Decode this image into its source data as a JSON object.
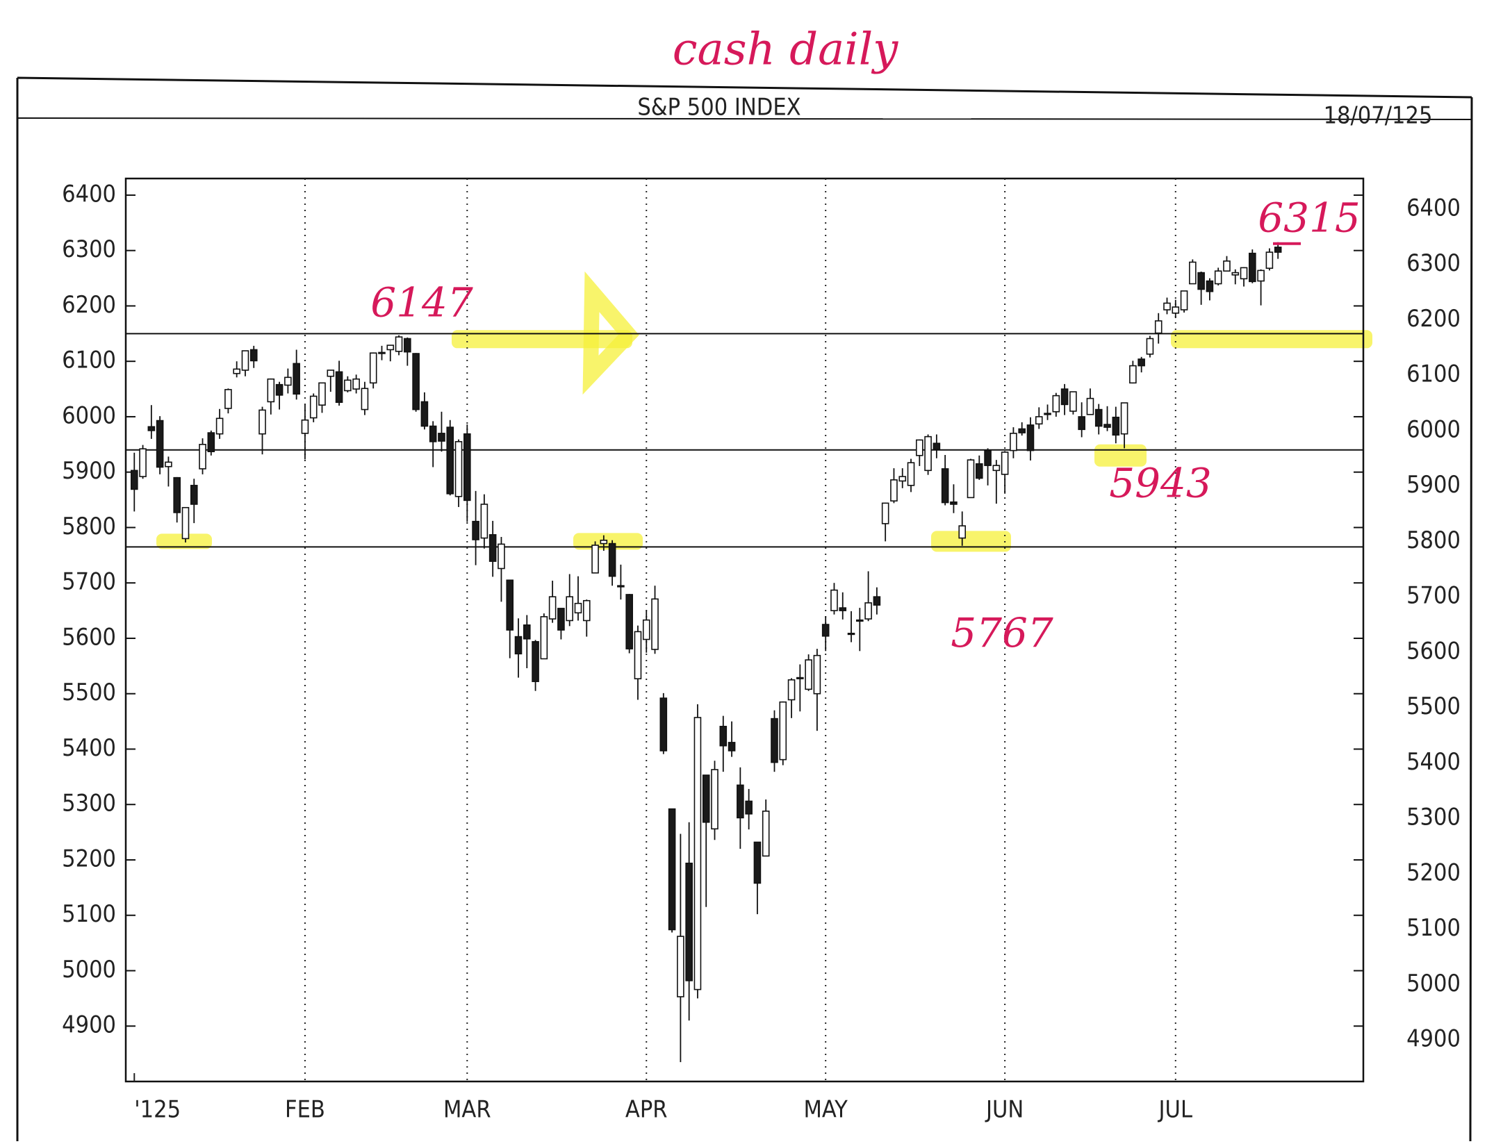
{
  "chart_data": {
    "type": "candlestick",
    "title": "S&P 500 INDEX",
    "date": "18/07/125",
    "handwritten_title": "cash daily",
    "annotations": [
      {
        "text": "6147",
        "value": 6147
      },
      {
        "text": "5767",
        "value": 5767
      },
      {
        "text": "5943",
        "value": 5943
      },
      {
        "text": "6315",
        "value": 6315
      }
    ],
    "levels": [
      6150,
      5940,
      5765
    ],
    "xlim": [
      -1,
      144
    ],
    "xticks": [
      {
        "value": 0,
        "label": "'125"
      },
      {
        "value": 20,
        "label": "FEB"
      },
      {
        "value": 39,
        "label": "MAR"
      },
      {
        "value": 60,
        "label": "APR"
      },
      {
        "value": 81,
        "label": "MAY"
      },
      {
        "value": 102,
        "label": "JUN"
      },
      {
        "value": 122,
        "label": "JUL"
      }
    ],
    "ylim": [
      4800,
      6430
    ],
    "yticks": [
      4900,
      5000,
      5100,
      5200,
      5300,
      5400,
      5500,
      5600,
      5700,
      5800,
      5900,
      6000,
      6100,
      6200,
      6300,
      6400
    ],
    "y2lim": [
      4800,
      6430
    ],
    "y2ticks": [
      4900,
      5000,
      5100,
      5200,
      5300,
      5400,
      5500,
      5600,
      5700,
      5800,
      5900,
      6000,
      6100,
      6200,
      6300,
      6400
    ],
    "up_color": "#ffffff",
    "down_color": "#1a1a1a",
    "x": [
      0,
      1,
      2,
      3,
      4,
      5,
      6,
      7,
      8,
      9,
      10,
      11,
      12,
      13,
      14,
      15,
      16,
      17,
      18,
      19,
      20,
      21,
      22,
      23,
      24,
      25,
      26,
      27,
      28,
      29,
      30,
      31,
      32,
      33,
      34,
      35,
      36,
      37,
      38,
      39,
      40,
      41,
      42,
      43,
      44,
      45,
      46,
      47,
      48,
      49,
      50,
      51,
      52,
      53,
      54,
      55,
      56,
      57,
      58,
      59,
      60,
      61,
      62,
      63,
      64,
      65,
      66,
      67,
      68,
      69,
      70,
      71,
      72,
      73,
      74,
      75,
      76,
      77,
      78,
      79,
      80,
      81,
      82,
      83,
      84,
      85,
      86,
      87,
      88,
      89,
      90,
      91,
      92,
      93,
      94,
      95,
      96,
      97,
      98,
      99,
      100,
      101,
      102,
      103,
      104,
      105,
      106,
      107,
      108,
      109,
      110,
      111,
      112,
      113,
      114,
      115,
      116,
      117,
      118,
      119,
      120,
      121,
      122,
      123,
      124,
      125,
      126,
      127,
      128,
      129,
      130,
      131,
      132,
      133,
      134
    ],
    "open": [
      5903,
      5892,
      5982,
      5993,
      5910,
      5890,
      5780,
      5876,
      5906,
      5971,
      5969,
      6015,
      6078,
      6084,
      6121,
      5969,
      6027,
      6058,
      6057,
      6096,
      5970,
      5998,
      6021,
      6073,
      6081,
      6047,
      6050,
      6013,
      6061,
      6116,
      6121,
      6118,
      6141,
      6114,
      6027,
      5983,
      5970,
      5981,
      5856,
      5969,
      5811,
      5781,
      5787,
      5726,
      5705,
      5603,
      5624,
      5594,
      5563,
      5635,
      5654,
      5632,
      5646,
      5632,
      5718,
      5771,
      5771,
      5695,
      5679,
      5527,
      5598,
      5580,
      5492,
      5292,
      4953,
      5194,
      4966,
      5353,
      5256,
      5441,
      5412,
      5335,
      5306,
      5232,
      5207,
      5455,
      5381,
      5489,
      5529,
      5508,
      5500,
      5625,
      5650,
      5655,
      5609,
      5633,
      5635,
      5675,
      5807,
      5848,
      5884,
      5876,
      5930,
      5903,
      5952,
      5906,
      5846,
      5781,
      5854,
      5915,
      5939,
      5903,
      5896,
      5939,
      5978,
      5985,
      5987,
      6004,
      6009,
      6050,
      6010,
      6000,
      6004,
      6013,
      5986,
      5999,
      5969,
      6061,
      6104,
      6113,
      6151,
      6193,
      6187,
      6193,
      6240,
      6260,
      6245,
      6240,
      6263,
      6256,
      6249,
      6295,
      6245,
      6268,
      6306
    ],
    "high": [
      5935,
      5949,
      6021,
      6001,
      5928,
      5891,
      5836,
      5888,
      5961,
      5975,
      6014,
      6051,
      6100,
      6119,
      6128,
      6018,
      6069,
      6063,
      6087,
      6121,
      6022,
      6042,
      6062,
      6084,
      6101,
      6073,
      6076,
      6063,
      6116,
      6128,
      6129,
      6147,
      6143,
      6115,
      6044,
      5992,
      6009,
      5994,
      5959,
      5986,
      5866,
      5860,
      5812,
      5783,
      5705,
      5636,
      5642,
      5597,
      5645,
      5704,
      5654,
      5716,
      5712,
      5670,
      5775,
      5786,
      5777,
      5733,
      5680,
      5623,
      5650,
      5695,
      5501,
      5292,
      5247,
      5268,
      5481,
      5353,
      5379,
      5460,
      5450,
      5367,
      5328,
      5232,
      5309,
      5470,
      5486,
      5528,
      5553,
      5571,
      5581,
      5640,
      5700,
      5683,
      5649,
      5655,
      5721,
      5692,
      5845,
      5907,
      5907,
      5924,
      5959,
      5968,
      5968,
      5931,
      5878,
      5829,
      5924,
      5930,
      5943,
      5922,
      5938,
      5981,
      5990,
      5999,
      6017,
      6022,
      6043,
      6059,
      6045,
      6026,
      6051,
      6023,
      6019,
      6018,
      6025,
      6101,
      6108,
      6146,
      6187,
      6215,
      6211,
      6227,
      6284,
      6262,
      6250,
      6269,
      6290,
      6266,
      6270,
      6302,
      6266,
      6304,
      6315
    ],
    "low": [
      5829,
      5888,
      5960,
      5896,
      5874,
      5809,
      5773,
      5808,
      5896,
      5930,
      5960,
      6006,
      6071,
      6073,
      6088,
      5932,
      6004,
      6013,
      6042,
      6031,
      5923,
      5990,
      6007,
      6045,
      6020,
      6044,
      6042,
      6003,
      6051,
      6102,
      6100,
      6111,
      6092,
      6009,
      5977,
      5909,
      5937,
      5858,
      5837,
      5810,
      5732,
      5762,
      5711,
      5666,
      5564,
      5529,
      5546,
      5505,
      5563,
      5628,
      5598,
      5622,
      5632,
      5603,
      5718,
      5758,
      5695,
      5670,
      5573,
      5489,
      5574,
      5572,
      5391,
      5069,
      4835,
      4910,
      4950,
      5115,
      5236,
      5359,
      5386,
      5220,
      5255,
      5102,
      5207,
      5359,
      5371,
      5456,
      5468,
      5505,
      5433,
      5577,
      5643,
      5634,
      5593,
      5577,
      5631,
      5643,
      5775,
      5844,
      5871,
      5864,
      5911,
      5895,
      5925,
      5840,
      5826,
      5767,
      5854,
      5886,
      5876,
      5843,
      5861,
      5925,
      5966,
      5921,
      5978,
      5994,
      6000,
      6003,
      6004,
      5963,
      6004,
      5968,
      5974,
      5952,
      5943,
      6060,
      6080,
      6107,
      6132,
      6185,
      6178,
      6188,
      6240,
      6202,
      6210,
      6237,
      6263,
      6239,
      6235,
      6241,
      6201,
      6264,
      6285
    ],
    "close": [
      5869,
      5942,
      5975,
      5909,
      5918,
      5827,
      5836,
      5842,
      5950,
      5937,
      5997,
      6049,
      6086,
      6119,
      6101,
      6012,
      6068,
      6039,
      6071,
      6041,
      5994,
      6037,
      6061,
      6084,
      6026,
      6066,
      6068,
      6051,
      6115,
      6115,
      6129,
      6144,
      6117,
      6013,
      5983,
      5955,
      5956,
      5861,
      5955,
      5849,
      5778,
      5842,
      5739,
      5770,
      5615,
      5572,
      5599,
      5522,
      5639,
      5675,
      5615,
      5675,
      5663,
      5668,
      5768,
      5777,
      5712,
      5693,
      5581,
      5612,
      5633,
      5671,
      5397,
      5074,
      5062,
      4982,
      5457,
      5268,
      5363,
      5406,
      5397,
      5276,
      5283,
      5158,
      5288,
      5376,
      5485,
      5525,
      5529,
      5561,
      5569,
      5604,
      5687,
      5650,
      5607,
      5631,
      5664,
      5660,
      5844,
      5886,
      5892,
      5917,
      5958,
      5964,
      5941,
      5845,
      5842,
      5803,
      5922,
      5889,
      5912,
      5912,
      5936,
      5970,
      5971,
      5939,
      6000,
      6006,
      6038,
      6022,
      6045,
      5977,
      6033,
      5983,
      5981,
      5967,
      6025,
      6092,
      6092,
      6141,
      6173,
      6205,
      6198,
      6227,
      6279,
      6230,
      6226,
      6263,
      6281,
      6260,
      6269,
      6244,
      6264,
      6297,
      6297
    ]
  }
}
